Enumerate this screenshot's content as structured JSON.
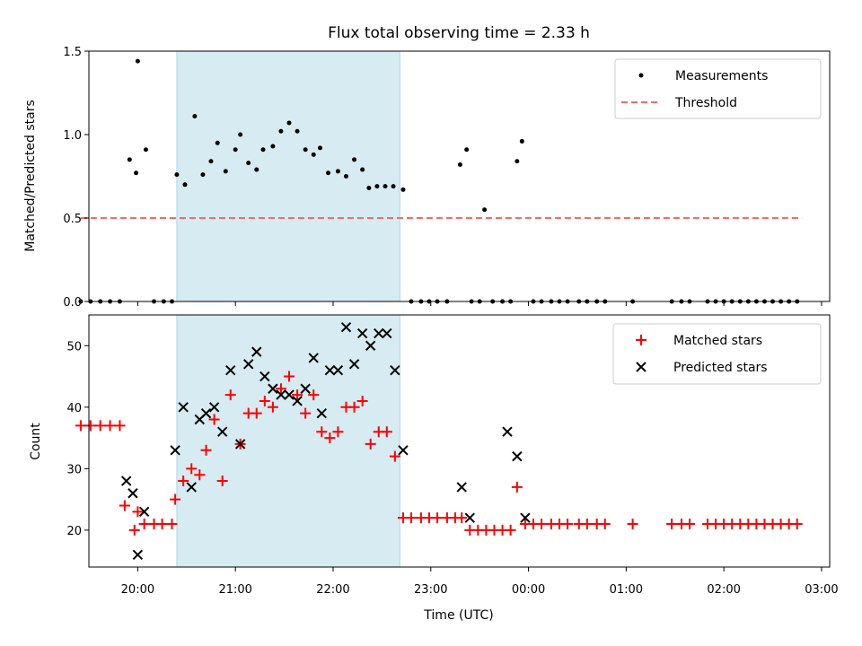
{
  "title": "Flux total observing time = 2.33 h",
  "colors": {
    "span": "#add8e6",
    "measurements": "#000000",
    "threshold": "#ff6666",
    "matched": "#ff0000",
    "predicted": "#000000"
  },
  "chart_data": [
    {
      "type": "scatter",
      "ylabel": "Matched/Predicted stars",
      "ylim": [
        0,
        1.5
      ],
      "y_ticks": [
        "0.0",
        "0.5",
        "1.0",
        "1.5"
      ],
      "x_range": [
        "19:30",
        "03:05"
      ],
      "highlight_span": [
        "20:24",
        "22:41"
      ],
      "legend_position": "top-right",
      "legend": [
        "Measurements",
        "Threshold"
      ],
      "threshold": {
        "value": 0.5,
        "x": [
          "19:25",
          "02:48"
        ]
      },
      "series": [
        {
          "name": "Measurements",
          "points": [
            [
              "19:25",
              0
            ],
            [
              "19:31",
              0
            ],
            [
              "19:37",
              0
            ],
            [
              "19:43",
              0
            ],
            [
              "19:49",
              0
            ],
            [
              "19:55",
              0.85
            ],
            [
              "20:00",
              1.44
            ],
            [
              "19:59",
              0.77
            ],
            [
              "20:05",
              0.91
            ],
            [
              "20:10",
              0
            ],
            [
              "20:16",
              0
            ],
            [
              "20:21",
              0
            ],
            [
              "20:24",
              0.76
            ],
            [
              "20:29",
              0.7
            ],
            [
              "20:35",
              1.11
            ],
            [
              "20:40",
              0.76
            ],
            [
              "20:45",
              0.84
            ],
            [
              "20:49",
              0.95
            ],
            [
              "20:54",
              0.78
            ],
            [
              "21:00",
              0.91
            ],
            [
              "21:03",
              1.0
            ],
            [
              "21:08",
              0.83
            ],
            [
              "21:13",
              0.79
            ],
            [
              "21:17",
              0.91
            ],
            [
              "21:23",
              0.93
            ],
            [
              "21:28",
              1.02
            ],
            [
              "21:33",
              1.07
            ],
            [
              "21:38",
              1.02
            ],
            [
              "21:43",
              0.91
            ],
            [
              "21:48",
              0.88
            ],
            [
              "21:52",
              0.92
            ],
            [
              "21:57",
              0.77
            ],
            [
              "22:03",
              0.78
            ],
            [
              "22:08",
              0.75
            ],
            [
              "22:13",
              0.85
            ],
            [
              "22:18",
              0.79
            ],
            [
              "22:22",
              0.68
            ],
            [
              "22:27",
              0.69
            ],
            [
              "22:32",
              0.69
            ],
            [
              "22:37",
              0.69
            ],
            [
              "22:43",
              0.67
            ],
            [
              "22:48",
              0
            ],
            [
              "22:54",
              0
            ],
            [
              "22:59",
              0
            ],
            [
              "23:04",
              0
            ],
            [
              "23:10",
              0
            ],
            [
              "23:18",
              0.82
            ],
            [
              "23:22",
              0.91
            ],
            [
              "23:25",
              0
            ],
            [
              "23:30",
              0
            ],
            [
              "23:33",
              0.55
            ],
            [
              "23:38",
              0
            ],
            [
              "23:44",
              0
            ],
            [
              "23:49",
              0
            ],
            [
              "23:53",
              0.84
            ],
            [
              "23:56",
              0.96
            ],
            [
              "00:03",
              0
            ],
            [
              "00:08",
              0
            ],
            [
              "00:14",
              0
            ],
            [
              "00:19",
              0
            ],
            [
              "00:24",
              0
            ],
            [
              "00:31",
              0
            ],
            [
              "00:36",
              0
            ],
            [
              "00:42",
              0
            ],
            [
              "00:47",
              0
            ],
            [
              "01:04",
              0
            ],
            [
              "01:28",
              0
            ],
            [
              "01:34",
              0
            ],
            [
              "01:39",
              0
            ],
            [
              "01:50",
              0
            ],
            [
              "01:55",
              0
            ],
            [
              "02:00",
              0
            ],
            [
              "02:05",
              0
            ],
            [
              "02:10",
              0
            ],
            [
              "02:15",
              0
            ],
            [
              "02:20",
              0
            ],
            [
              "02:25",
              0
            ],
            [
              "02:30",
              0
            ],
            [
              "02:35",
              0
            ],
            [
              "02:40",
              0
            ],
            [
              "02:45",
              0
            ]
          ]
        }
      ]
    },
    {
      "type": "scatter",
      "xlabel": "Time (UTC)",
      "ylabel": "Count",
      "ylim": [
        14,
        55
      ],
      "y_ticks": [
        "20",
        "30",
        "40",
        "50"
      ],
      "x_range": [
        "19:30",
        "03:05"
      ],
      "x_ticks": [
        "20:00",
        "21:00",
        "22:00",
        "23:00",
        "00:00",
        "01:00",
        "02:00",
        "03:00"
      ],
      "highlight_span": [
        "20:24",
        "22:41"
      ],
      "legend_position": "top-right",
      "legend": [
        "Matched stars",
        "Predicted stars"
      ],
      "series": [
        {
          "name": "Matched stars",
          "points": [
            [
              "19:25",
              37
            ],
            [
              "19:31",
              37
            ],
            [
              "19:37",
              37
            ],
            [
              "19:43",
              37
            ],
            [
              "19:49",
              37
            ],
            [
              "19:52",
              24
            ],
            [
              "19:58",
              20
            ],
            [
              "20:00",
              23
            ],
            [
              "20:04",
              21
            ],
            [
              "20:10",
              21
            ],
            [
              "20:15",
              21
            ],
            [
              "20:21",
              21
            ],
            [
              "20:23",
              25
            ],
            [
              "20:28",
              28
            ],
            [
              "20:33",
              30
            ],
            [
              "20:38",
              29
            ],
            [
              "20:42",
              33
            ],
            [
              "20:47",
              38
            ],
            [
              "20:52",
              28
            ],
            [
              "20:57",
              42
            ],
            [
              "21:03",
              34
            ],
            [
              "21:08",
              39
            ],
            [
              "21:13",
              39
            ],
            [
              "21:18",
              41
            ],
            [
              "21:23",
              40
            ],
            [
              "21:28",
              43
            ],
            [
              "21:33",
              45
            ],
            [
              "21:38",
              42
            ],
            [
              "21:43",
              39
            ],
            [
              "21:48",
              42
            ],
            [
              "21:53",
              36
            ],
            [
              "21:58",
              35
            ],
            [
              "22:03",
              36
            ],
            [
              "22:08",
              40
            ],
            [
              "22:13",
              40
            ],
            [
              "22:18",
              41
            ],
            [
              "22:23",
              34
            ],
            [
              "22:28",
              36
            ],
            [
              "22:33",
              36
            ],
            [
              "22:38",
              32
            ],
            [
              "22:43",
              22
            ],
            [
              "22:48",
              22
            ],
            [
              "22:54",
              22
            ],
            [
              "22:59",
              22
            ],
            [
              "23:04",
              22
            ],
            [
              "23:10",
              22
            ],
            [
              "23:15",
              22
            ],
            [
              "23:19",
              22
            ],
            [
              "23:24",
              20
            ],
            [
              "23:29",
              20
            ],
            [
              "23:34",
              20
            ],
            [
              "23:39",
              20
            ],
            [
              "23:44",
              20
            ],
            [
              "23:49",
              20
            ],
            [
              "23:53",
              27
            ],
            [
              "23:58",
              21
            ],
            [
              "00:03",
              21
            ],
            [
              "00:08",
              21
            ],
            [
              "00:14",
              21
            ],
            [
              "00:19",
              21
            ],
            [
              "00:24",
              21
            ],
            [
              "00:31",
              21
            ],
            [
              "00:36",
              21
            ],
            [
              "00:42",
              21
            ],
            [
              "00:47",
              21
            ],
            [
              "01:04",
              21
            ],
            [
              "01:28",
              21
            ],
            [
              "01:34",
              21
            ],
            [
              "01:39",
              21
            ],
            [
              "01:50",
              21
            ],
            [
              "01:55",
              21
            ],
            [
              "02:00",
              21
            ],
            [
              "02:05",
              21
            ],
            [
              "02:10",
              21
            ],
            [
              "02:15",
              21
            ],
            [
              "02:20",
              21
            ],
            [
              "02:25",
              21
            ],
            [
              "02:30",
              21
            ],
            [
              "02:35",
              21
            ],
            [
              "02:40",
              21
            ],
            [
              "02:45",
              21
            ]
          ]
        },
        {
          "name": "Predicted stars",
          "points": [
            [
              "19:53",
              28
            ],
            [
              "19:57",
              26
            ],
            [
              "20:00",
              16
            ],
            [
              "20:04",
              23
            ],
            [
              "20:23",
              33
            ],
            [
              "20:28",
              40
            ],
            [
              "20:33",
              27
            ],
            [
              "20:38",
              38
            ],
            [
              "20:42",
              39
            ],
            [
              "20:47",
              40
            ],
            [
              "20:52",
              36
            ],
            [
              "20:57",
              46
            ],
            [
              "21:03",
              34
            ],
            [
              "21:08",
              47
            ],
            [
              "21:13",
              49
            ],
            [
              "21:18",
              45
            ],
            [
              "21:23",
              43
            ],
            [
              "21:28",
              42
            ],
            [
              "21:33",
              42
            ],
            [
              "21:38",
              41
            ],
            [
              "21:43",
              43
            ],
            [
              "21:48",
              48
            ],
            [
              "21:53",
              39
            ],
            [
              "21:58",
              46
            ],
            [
              "22:03",
              46
            ],
            [
              "22:08",
              53
            ],
            [
              "22:13",
              47
            ],
            [
              "22:18",
              52
            ],
            [
              "22:23",
              50
            ],
            [
              "22:28",
              52
            ],
            [
              "22:33",
              52
            ],
            [
              "22:38",
              46
            ],
            [
              "22:43",
              33
            ],
            [
              "23:19",
              27
            ],
            [
              "23:24",
              22
            ],
            [
              "23:47",
              36
            ],
            [
              "23:53",
              32
            ],
            [
              "23:58",
              22
            ]
          ]
        }
      ]
    }
  ]
}
